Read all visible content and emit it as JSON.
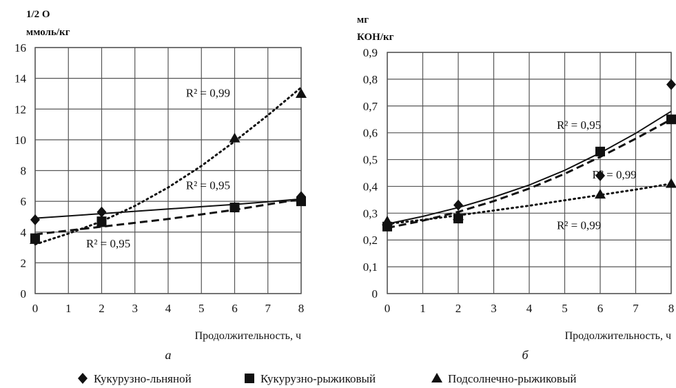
{
  "chart_data": [
    {
      "type": "scatter",
      "panel_label": "а",
      "ylabel_line1": "1/2 О",
      "ylabel_line2": "ммоль/кг",
      "xlabel": "Продолжительность, ч",
      "xlim": [
        0,
        8
      ],
      "ylim": [
        0,
        16
      ],
      "xticks": [
        0,
        1,
        2,
        3,
        4,
        5,
        6,
        7,
        8
      ],
      "yticks": [
        0,
        2,
        4,
        6,
        8,
        10,
        12,
        14,
        16
      ],
      "grid": true,
      "series": [
        {
          "name": "Кукурузно-льняной",
          "marker": "diamond",
          "line": "solid",
          "x": [
            0,
            2,
            6,
            8
          ],
          "y": [
            4.8,
            5.3,
            5.6,
            6.3
          ],
          "trend_x": [
            0,
            1,
            2,
            3,
            4,
            5,
            6,
            7,
            8
          ],
          "trend_y": [
            4.9,
            5.05,
            5.2,
            5.35,
            5.5,
            5.65,
            5.8,
            5.97,
            6.15
          ]
        },
        {
          "name": "Кукурузно-рыжиковый",
          "marker": "square",
          "line": "dashed",
          "x": [
            0,
            2,
            6,
            8
          ],
          "y": [
            3.6,
            4.7,
            5.6,
            6.0
          ],
          "trend_x": [
            0,
            1,
            2,
            3,
            4,
            5,
            6,
            7,
            8
          ],
          "trend_y": [
            3.85,
            4.1,
            4.35,
            4.6,
            4.85,
            5.15,
            5.45,
            5.8,
            6.15
          ]
        },
        {
          "name": "Подсолнечно-рыжиковый",
          "marker": "triangle",
          "line": "dotted",
          "x": [
            0,
            2,
            6,
            8
          ],
          "y": [
            3.5,
            4.6,
            10.1,
            13.0
          ],
          "trend_x": [
            0,
            1,
            2,
            3,
            4,
            5,
            6,
            7,
            8
          ],
          "trend_y": [
            3.2,
            3.9,
            4.7,
            5.7,
            6.9,
            8.3,
            9.9,
            11.6,
            13.4
          ]
        }
      ],
      "annotations": [
        {
          "text": "R² = 0,99",
          "x": 5.2,
          "y": 12.8
        },
        {
          "text": "R² = 0,95",
          "x": 5.2,
          "y": 6.8
        },
        {
          "text": "R² = 0,95",
          "x": 2.2,
          "y": 3.0
        }
      ]
    },
    {
      "type": "scatter",
      "panel_label": "б",
      "ylabel_line1": "мг",
      "ylabel_line2": "КОН/кг",
      "xlabel": "Продолжительность, ч",
      "xlim": [
        0,
        8
      ],
      "ylim": [
        0,
        0.9
      ],
      "xticks": [
        0,
        1,
        2,
        3,
        4,
        5,
        6,
        7,
        8
      ],
      "yticks": [
        "0",
        "0,1",
        "0,2",
        "0,3",
        "0,4",
        "0,5",
        "0,6",
        "0,7",
        "0,8",
        "0,9"
      ],
      "grid": true,
      "series": [
        {
          "name": "Кукурузно-льняной",
          "marker": "diamond",
          "line": "solid",
          "x": [
            0,
            2,
            6,
            8
          ],
          "y": [
            0.26,
            0.33,
            0.44,
            0.78
          ],
          "trend_x": [
            0,
            1,
            2,
            3,
            4,
            5,
            6,
            7,
            8
          ],
          "trend_y": [
            0.26,
            0.288,
            0.321,
            0.36,
            0.405,
            0.46,
            0.525,
            0.598,
            0.68
          ]
        },
        {
          "name": "Кукурузно-рыжиковый",
          "marker": "square",
          "line": "dashed",
          "x": [
            0,
            2,
            6,
            8
          ],
          "y": [
            0.25,
            0.28,
            0.53,
            0.65
          ],
          "trend_x": [
            0,
            1,
            2,
            3,
            4,
            5,
            6,
            7,
            8
          ],
          "trend_y": [
            0.245,
            0.272,
            0.305,
            0.345,
            0.392,
            0.447,
            0.51,
            0.578,
            0.65
          ]
        },
        {
          "name": "Подсолнечно-рыжиковый",
          "marker": "triangle",
          "line": "dotted",
          "x": [
            0,
            2,
            6,
            8
          ],
          "y": [
            0.27,
            0.29,
            0.37,
            0.41
          ],
          "trend_x": [
            0,
            1,
            2,
            3,
            4,
            5,
            6,
            7,
            8
          ],
          "trend_y": [
            0.26,
            0.275,
            0.292,
            0.31,
            0.328,
            0.348,
            0.368,
            0.388,
            0.41
          ]
        }
      ],
      "annotations": [
        {
          "text": "R² = 0,95",
          "x": 5.4,
          "y": 0.615
        },
        {
          "text": "R² = 0,99",
          "x": 6.4,
          "y": 0.43
        },
        {
          "text": "R² = 0,99",
          "x": 5.4,
          "y": 0.24
        }
      ]
    }
  ],
  "legend": [
    {
      "label": "Кукурузно-льняной",
      "marker": "diamond"
    },
    {
      "label": "Кукурузно-рыжиковый",
      "marker": "square"
    },
    {
      "label": "Подсолнечно-рыжиковый",
      "marker": "triangle"
    }
  ]
}
